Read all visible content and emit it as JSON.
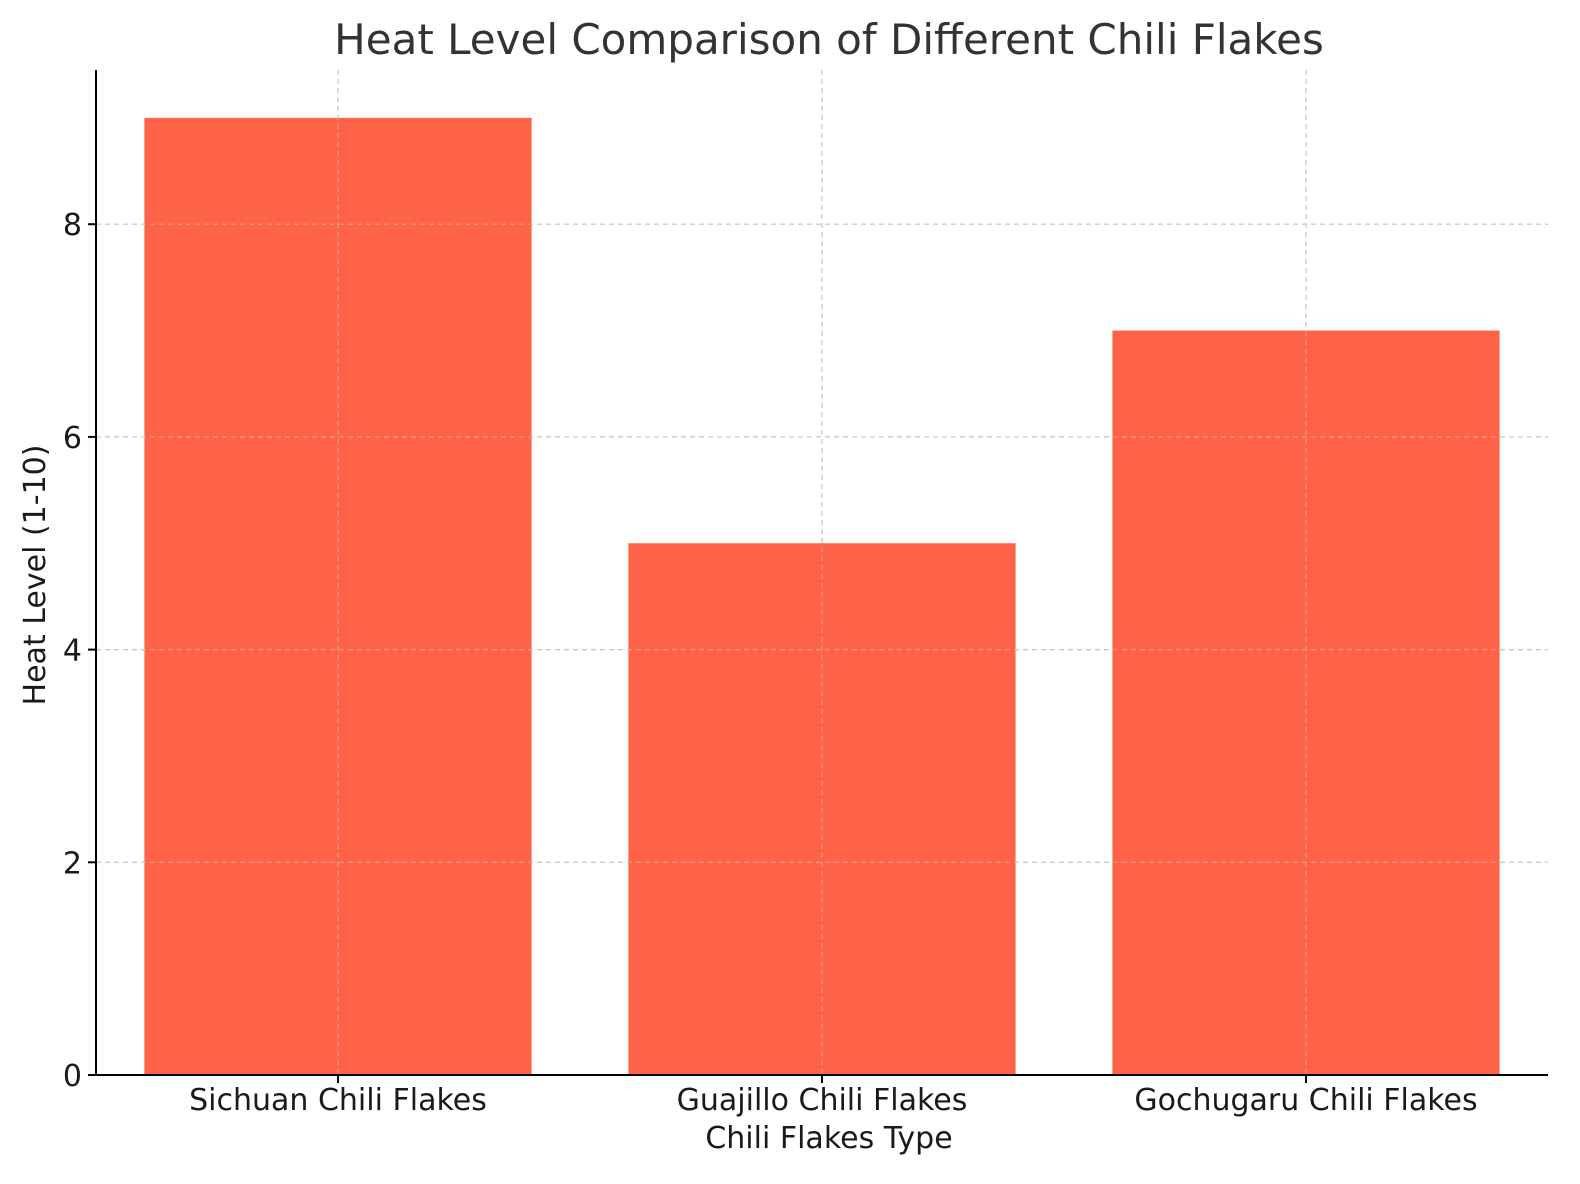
{
  "chart_data": {
    "type": "bar",
    "title": "Heat Level Comparison of Different Chili Flakes",
    "xlabel": "Chili Flakes Type",
    "ylabel": "Heat Level (1-10)",
    "categories": [
      "Sichuan Chili Flakes",
      "Guajillo Chili Flakes",
      "Gochugaru Chili Flakes"
    ],
    "values": [
      9,
      5,
      7
    ],
    "ylim": [
      0,
      9.45
    ],
    "yticks": [
      0,
      2,
      4,
      6,
      8
    ],
    "grid": true,
    "colors": {
      "bar": "#ff6347",
      "grid": "#c8c8c8",
      "axis": "#000000",
      "text": "#333333",
      "tick_text": "#1a1a1a"
    }
  }
}
